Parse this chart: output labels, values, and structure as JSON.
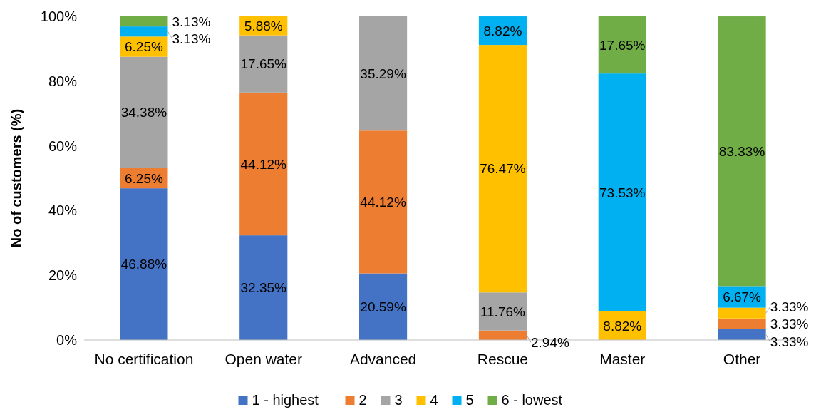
{
  "chart_data": {
    "type": "bar",
    "stacked": true,
    "ylabel": "No of customers (%)",
    "categories": [
      "No certification",
      "Open water",
      "Advanced",
      "Rescue",
      "Master",
      "Other"
    ],
    "ylim": [
      0,
      100
    ],
    "yticks": [
      {
        "value": 0,
        "label": "0%"
      },
      {
        "value": 20,
        "label": "20%"
      },
      {
        "value": 40,
        "label": "40%"
      },
      {
        "value": 60,
        "label": "60%"
      },
      {
        "value": 80,
        "label": "80%"
      },
      {
        "value": 100,
        "label": "100%"
      }
    ],
    "grid": false,
    "legend": "bottom",
    "series": [
      {
        "name": "1 - highest",
        "color": "#4472c4",
        "values": [
          46.88,
          32.35,
          20.59,
          0,
          0,
          3.33
        ],
        "value_labels": [
          "46.88%",
          "32.35%",
          "20.59%",
          null,
          null,
          "3.33%"
        ]
      },
      {
        "name": "2",
        "color": "#ed7d31",
        "values": [
          6.25,
          44.12,
          44.12,
          2.94,
          0,
          3.33
        ],
        "value_labels": [
          "6.25%",
          "44.12%",
          "44.12%",
          "2.94%",
          null,
          "3.33%"
        ]
      },
      {
        "name": "3",
        "color": "#a5a5a5",
        "values": [
          34.38,
          17.65,
          35.29,
          11.76,
          0,
          0
        ],
        "value_labels": [
          "34.38%",
          "17.65%",
          "35.29%",
          "11.76%",
          null,
          null
        ]
      },
      {
        "name": "4",
        "color": "#ffc000",
        "values": [
          6.25,
          5.88,
          0,
          76.47,
          8.82,
          3.33
        ],
        "value_labels": [
          "6.25%",
          "5.88%",
          null,
          "76.47%",
          "8.82%",
          "3.33%"
        ]
      },
      {
        "name": "5",
        "color": "#00b0f0",
        "values": [
          3.13,
          0,
          0,
          8.82,
          73.53,
          6.67
        ],
        "value_labels": [
          "3.13%",
          null,
          null,
          "8.82%",
          "73.53%",
          "6.67%"
        ]
      },
      {
        "name": "6 - lowest",
        "color": "#70ad47",
        "values": [
          3.13,
          0,
          0,
          0,
          17.65,
          83.33
        ],
        "value_labels": [
          "3.13%",
          null,
          null,
          null,
          "17.65%",
          "83.33%"
        ]
      }
    ]
  }
}
